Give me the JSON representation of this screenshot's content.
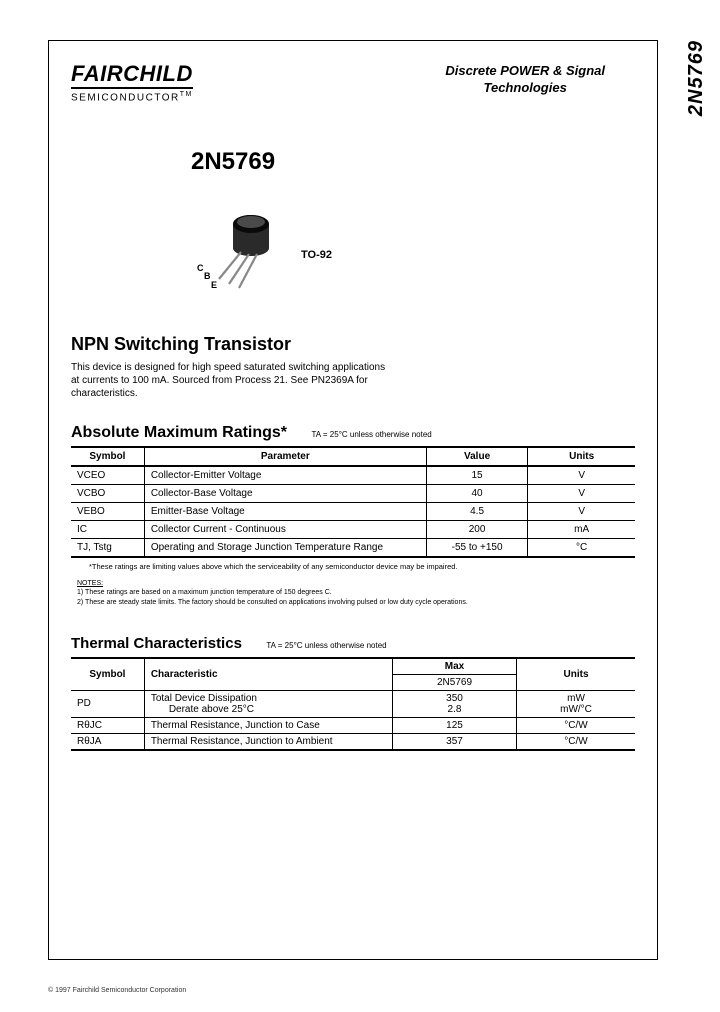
{
  "sideLabel": "2N5769",
  "logo": {
    "main": "FAIRCHILD",
    "sub": "SEMICONDUCTOR",
    "tm": "TM"
  },
  "headerRight": {
    "line1": "Discrete POWER & Signal",
    "line2": "Technologies"
  },
  "partNumber": "2N5769",
  "package": {
    "label": "TO-92",
    "pinC": "C",
    "pinB": "B",
    "pinE": "E"
  },
  "productTitle": "NPN Switching Transistor",
  "description": "This device is designed for high speed saturated switching applications at currents to 100 mA. Sourced from Process 21. See PN2369A for characteristics.",
  "ratings": {
    "title": "Absolute Maximum Ratings*",
    "note": "TA = 25°C unless otherwise noted",
    "columns": [
      "Symbol",
      "Parameter",
      "Value",
      "Units"
    ],
    "rows": [
      {
        "sym": "VCEO",
        "param": "Collector-Emitter Voltage",
        "val": "15",
        "unit": "V"
      },
      {
        "sym": "VCBO",
        "param": "Collector-Base Voltage",
        "val": "40",
        "unit": "V"
      },
      {
        "sym": "VEBO",
        "param": "Emitter-Base Voltage",
        "val": "4.5",
        "unit": "V"
      },
      {
        "sym": "IC",
        "param": "Collector Current - Continuous",
        "val": "200",
        "unit": "mA"
      },
      {
        "sym": "TJ, Tstg",
        "param": "Operating and Storage Junction Temperature Range",
        "val": "-55 to +150",
        "unit": "°C"
      }
    ],
    "footnote": "*These ratings are limiting values above which the serviceability of any semiconductor device may be impaired.",
    "notesHeader": "NOTES:",
    "note1": "1) These ratings are based on a maximum junction temperature of 150 degrees C.",
    "note2": "2) These are steady state limits. The factory should be consulted on applications involving pulsed or low duty cycle operations."
  },
  "thermal": {
    "title": "Thermal Characteristics",
    "note": "TA = 25°C unless otherwise noted",
    "columns": [
      "Symbol",
      "Characteristic",
      "Max",
      "Units"
    ],
    "subheader": "2N5769",
    "rows": [
      {
        "sym": "PD",
        "char": "Total Device Dissipation",
        "char2": "Derate above 25°C",
        "max": "350",
        "max2": "2.8",
        "unit": "mW",
        "unit2": "mW/°C"
      },
      {
        "sym": "RθJC",
        "char": "Thermal Resistance, Junction to Case",
        "max": "125",
        "unit": "°C/W"
      },
      {
        "sym": "RθJA",
        "char": "Thermal Resistance, Junction to Ambient",
        "max": "357",
        "unit": "°C/W"
      }
    ]
  },
  "copyright": "© 1997 Fairchild Semiconductor Corporation"
}
